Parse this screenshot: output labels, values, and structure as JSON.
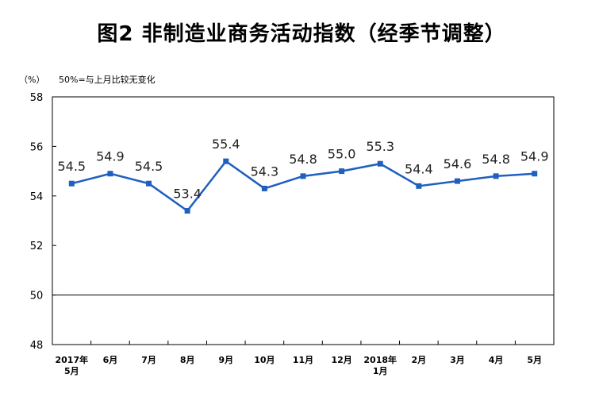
{
  "chart_data": {
    "type": "line",
    "title": "图2 非制造业商务活动指数（经季节调整）",
    "unit_label": "（%）",
    "note": "50%=与上月比较无变化",
    "categories": [
      [
        "2017年",
        "5月"
      ],
      [
        "6月"
      ],
      [
        "7月"
      ],
      [
        "8月"
      ],
      [
        "9月"
      ],
      [
        "10月"
      ],
      [
        "11月"
      ],
      [
        "12月"
      ],
      [
        "2018年",
        "1月"
      ],
      [
        "2月"
      ],
      [
        "3月"
      ],
      [
        "4月"
      ],
      [
        "5月"
      ]
    ],
    "values": [
      54.5,
      54.9,
      54.5,
      53.4,
      55.4,
      54.3,
      54.8,
      55.0,
      55.3,
      54.4,
      54.6,
      54.8,
      54.9
    ],
    "value_labels": [
      "54.5",
      "54.9",
      "54.5",
      "53.4",
      "55.4",
      "54.3",
      "54.8",
      "55.0",
      "55.3",
      "54.4",
      "54.6",
      "54.8",
      "54.9"
    ],
    "ylim": [
      48,
      58
    ],
    "yticks": [
      "58",
      "56",
      "54",
      "52",
      "50",
      "48"
    ],
    "reference_line": 50,
    "line_color": "#1f5fbf"
  }
}
